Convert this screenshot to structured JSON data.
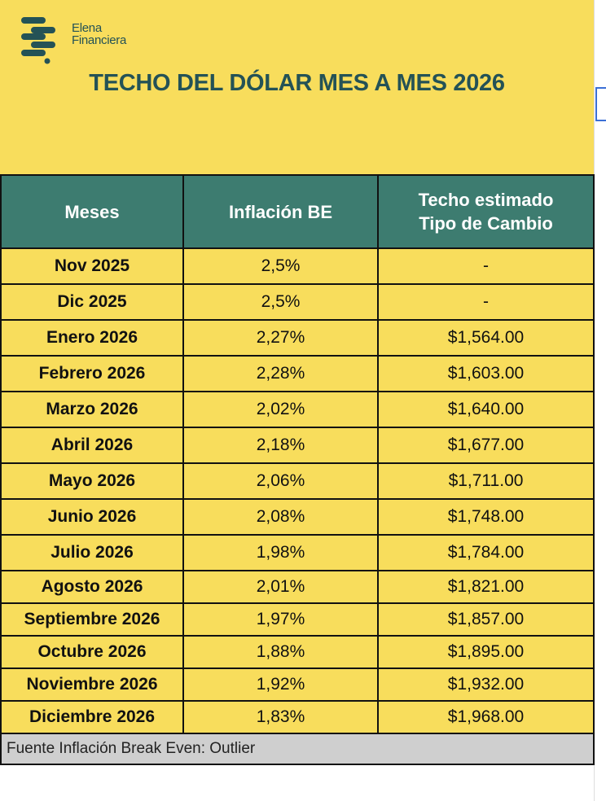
{
  "logo": {
    "line1": "Elena",
    "line2": "Financiera"
  },
  "title": "TECHO DEL DÓLAR MES A MES 2026",
  "colors": {
    "yellow": "#f8dd5c",
    "header": "#3d7c70",
    "title": "#245256",
    "footer": "#cfcfcf"
  },
  "table": {
    "headers": [
      "Meses",
      "Inflación BE",
      "Techo estimado Tipo de Cambio"
    ],
    "rows": [
      {
        "mes": "Nov 2025",
        "inflacion": "2,5%",
        "techo": "-"
      },
      {
        "mes": "Dic 2025",
        "inflacion": "2,5%",
        "techo": "-"
      },
      {
        "mes": "Enero 2026",
        "inflacion": "2,27%",
        "techo": "$1,564.00"
      },
      {
        "mes": "Febrero 2026",
        "inflacion": "2,28%",
        "techo": "$1,603.00"
      },
      {
        "mes": "Marzo 2026",
        "inflacion": "2,02%",
        "techo": "$1,640.00"
      },
      {
        "mes": "Abril 2026",
        "inflacion": "2,18%",
        "techo": "$1,677.00"
      },
      {
        "mes": "Mayo 2026",
        "inflacion": "2,06%",
        "techo": "$1,711.00"
      },
      {
        "mes": "Junio 2026",
        "inflacion": "2,08%",
        "techo": "$1,748.00"
      },
      {
        "mes": "Julio 2026",
        "inflacion": "1,98%",
        "techo": "$1,784.00"
      },
      {
        "mes": "Agosto 2026",
        "inflacion": "2,01%",
        "techo": "$1,821.00"
      },
      {
        "mes": "Septiembre 2026",
        "inflacion": "1,97%",
        "techo": "$1,857.00"
      },
      {
        "mes": "Octubre 2026",
        "inflacion": "1,88%",
        "techo": "$1,895.00"
      },
      {
        "mes": "Noviembre 2026",
        "inflacion": "1,92%",
        "techo": "$1,932.00"
      },
      {
        "mes": "Diciembre 2026",
        "inflacion": "1,83%",
        "techo": "$1,968.00"
      }
    ],
    "footer": "Fuente Inflación Break Even: Outlier"
  }
}
